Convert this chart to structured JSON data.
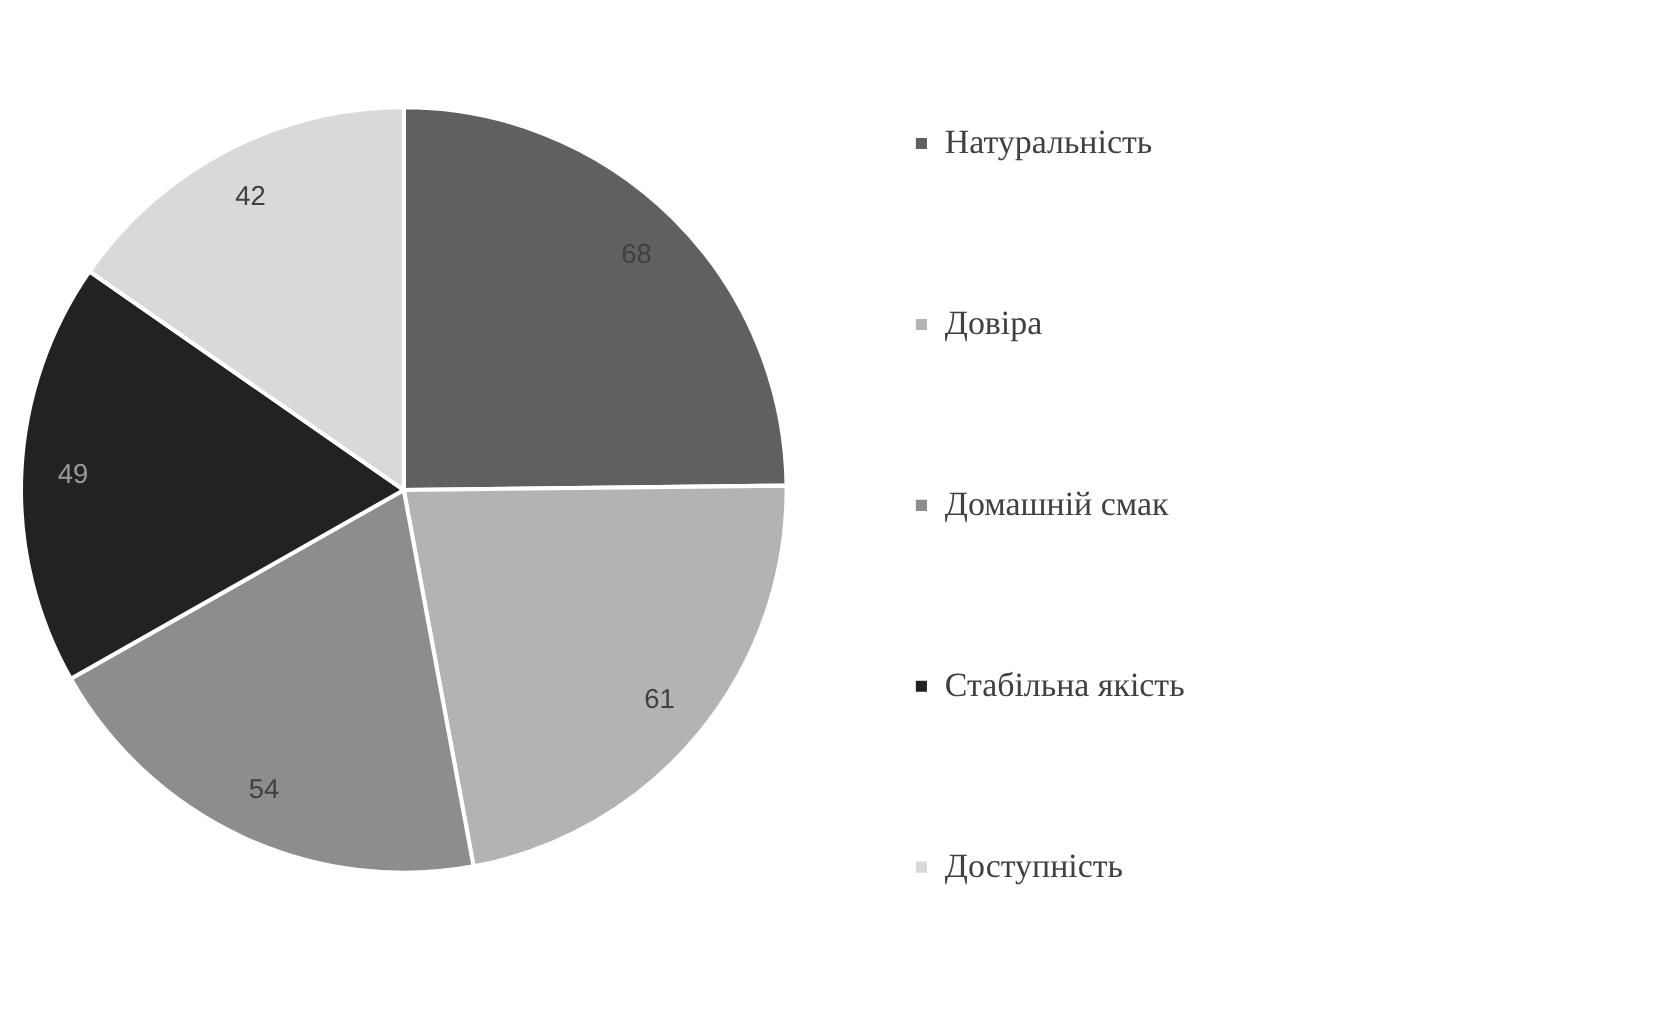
{
  "chart_data": {
    "type": "pie",
    "categories": [
      "Натуральність",
      "Довіра",
      "Домашній смак",
      "Стабільна якість",
      "Доступність"
    ],
    "values": [
      68,
      61,
      54,
      49,
      42
    ],
    "colors": [
      "#606060",
      "#b3b3b3",
      "#8d8d8d",
      "#222222",
      "#d9d9d9"
    ],
    "data_labels": true,
    "legend": "right"
  }
}
